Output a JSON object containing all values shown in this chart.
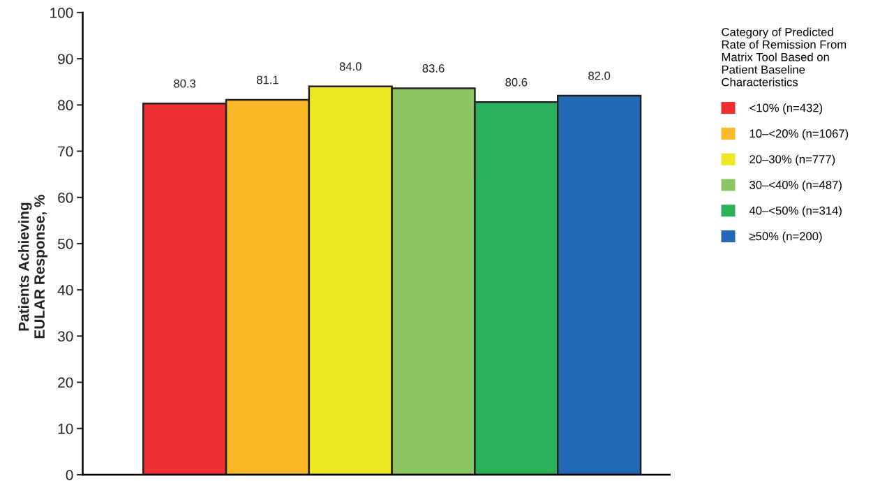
{
  "chart_data": {
    "type": "bar",
    "ylabel": "Patients Achieving\nEULAR Response, %",
    "legend_title": "Category of Predicted\nRate of Remission From\nMatrix Tool Based on\nPatient Baseline\nCharacteristics",
    "categories": [
      null,
      null,
      null,
      null,
      null,
      null
    ],
    "stacked": true,
    "series": [
      {
        "name": "<10% (n=432)",
        "color": "#ee3030",
        "values": [
          80.3,
          null,
          null,
          null,
          null,
          null
        ],
        "value_labels": [
          "80.3",
          null,
          null,
          null,
          null,
          null
        ]
      },
      {
        "name": "10–<20% (n=1067)",
        "color": "#fbb927",
        "values": [
          null,
          81.1,
          null,
          null,
          null,
          null
        ],
        "value_labels": [
          null,
          "81.1",
          null,
          null,
          null,
          null
        ]
      },
      {
        "name": "20–30% (n=777)",
        "color": "#ece824",
        "values": [
          null,
          null,
          84.0,
          null,
          null,
          null
        ],
        "value_labels": [
          null,
          null,
          "84.0",
          null,
          null,
          null
        ]
      },
      {
        "name": "30–<40% (n=487)",
        "color": "#8cc662",
        "values": [
          null,
          null,
          null,
          83.6,
          null,
          null
        ],
        "value_labels": [
          null,
          null,
          null,
          "83.6",
          null,
          null
        ]
      },
      {
        "name": "40–<50% (n=314)",
        "color": "#2ab15a",
        "values": [
          null,
          null,
          null,
          null,
          80.6,
          null
        ],
        "value_labels": [
          null,
          null,
          null,
          null,
          "80.6",
          null
        ]
      },
      {
        "name": "≥50% (n=200)",
        "color": "#2369b3",
        "values": [
          null,
          null,
          null,
          null,
          null,
          82.0
        ],
        "value_labels": [
          null,
          null,
          null,
          null,
          null,
          "82.0"
        ]
      }
    ],
    "ylim": [
      0,
      100
    ],
    "yticks": [
      0,
      10,
      20,
      30,
      40,
      50,
      60,
      70,
      80,
      90,
      100
    ],
    "tick_labels": "y",
    "legend": "right",
    "grid": false
  }
}
